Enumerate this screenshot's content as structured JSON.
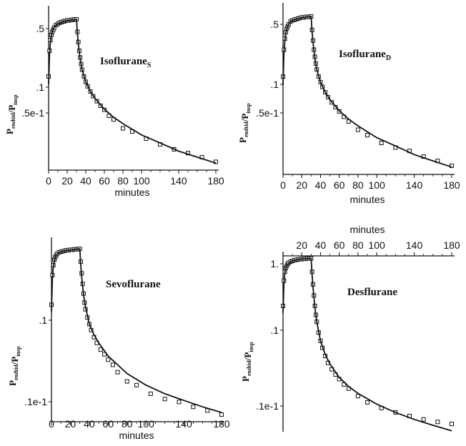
{
  "chart_data": [
    {
      "type": "line",
      "title": "Isoflurane",
      "title_subscript": "S",
      "ylabel": "P",
      "ylabel_subscript_1": "endtid",
      "ylabel_mid": "/P",
      "ylabel_subscript_2": "insp",
      "xlabel": "minutes",
      "yscale": "log",
      "xlim": [
        0,
        180
      ],
      "ylim": [
        0.012,
        0.9
      ],
      "xticks": [
        "0",
        "20",
        "40",
        "60",
        "80",
        "100",
        "140",
        "180"
      ],
      "yticks": [
        ".5",
        ".1",
        ".5e-1"
      ],
      "series": [
        {
          "style": "markers",
          "x": [
            0,
            1,
            2,
            3,
            4,
            5,
            6,
            8,
            10,
            12,
            14,
            16,
            18,
            20,
            22,
            24,
            26,
            28,
            30,
            31,
            32,
            33,
            34,
            35,
            36,
            38,
            40,
            42,
            45,
            48,
            52,
            56,
            60,
            65,
            70,
            80,
            90,
            105,
            120,
            135,
            150,
            165,
            180
          ],
          "y": [
            0.15,
            0.3,
            0.4,
            0.46,
            0.5,
            0.53,
            0.56,
            0.6,
            0.62,
            0.64,
            0.65,
            0.66,
            0.67,
            0.68,
            0.68,
            0.69,
            0.69,
            0.7,
            0.7,
            0.5,
            0.38,
            0.3,
            0.25,
            0.21,
            0.18,
            0.15,
            0.13,
            0.115,
            0.1,
            0.088,
            0.077,
            0.068,
            0.061,
            0.052,
            0.047,
            0.037,
            0.034,
            0.028,
            0.024,
            0.021,
            0.019,
            0.017,
            0.015
          ]
        },
        {
          "style": "line",
          "x": [
            0,
            1,
            2,
            3,
            4,
            6,
            8,
            10,
            14,
            18,
            22,
            26,
            30,
            31,
            32,
            34,
            36,
            40,
            45,
            50,
            60,
            70,
            80,
            100,
            120,
            140,
            160,
            180
          ],
          "y": [
            0.12,
            0.28,
            0.38,
            0.45,
            0.5,
            0.57,
            0.6,
            0.62,
            0.65,
            0.67,
            0.68,
            0.69,
            0.7,
            0.48,
            0.36,
            0.24,
            0.18,
            0.13,
            0.1,
            0.083,
            0.062,
            0.05,
            0.042,
            0.031,
            0.025,
            0.02,
            0.017,
            0.0145
          ]
        }
      ]
    },
    {
      "type": "line",
      "title": "Isoflurane",
      "title_subscript": "D",
      "ylabel": "P",
      "ylabel_subscript_1": "endtid",
      "ylabel_mid": "/P",
      "ylabel_subscript_2": "insp",
      "xlabel": "minutes",
      "yscale": "log",
      "xlim": [
        0,
        180
      ],
      "ylim": [
        0.012,
        0.9
      ],
      "xticks": [
        "0",
        "20",
        "40",
        "60",
        "80",
        "100",
        "140",
        "180"
      ],
      "yticks": [
        ".5",
        ".1",
        ".5e-1"
      ],
      "series": [
        {
          "style": "markers",
          "x": [
            0,
            1,
            2,
            3,
            4,
            5,
            6,
            8,
            10,
            12,
            14,
            16,
            18,
            20,
            22,
            24,
            26,
            28,
            30,
            31,
            32,
            33,
            34,
            35,
            36,
            38,
            40,
            42,
            45,
            48,
            52,
            56,
            60,
            65,
            70,
            80,
            90,
            105,
            120,
            135,
            150,
            165,
            180
          ],
          "y": [
            0.15,
            0.3,
            0.4,
            0.47,
            0.52,
            0.55,
            0.58,
            0.62,
            0.64,
            0.65,
            0.66,
            0.67,
            0.68,
            0.69,
            0.69,
            0.7,
            0.7,
            0.7,
            0.71,
            0.5,
            0.38,
            0.3,
            0.25,
            0.21,
            0.18,
            0.15,
            0.13,
            0.115,
            0.1,
            0.088,
            0.077,
            0.068,
            0.061,
            0.053,
            0.047,
            0.038,
            0.033,
            0.027,
            0.024,
            0.022,
            0.019,
            0.017,
            0.015
          ]
        },
        {
          "style": "line",
          "x": [
            0,
            1,
            2,
            3,
            4,
            6,
            8,
            10,
            14,
            18,
            22,
            26,
            30,
            31,
            32,
            34,
            36,
            40,
            45,
            50,
            60,
            70,
            80,
            100,
            120,
            140,
            160,
            180
          ],
          "y": [
            0.12,
            0.28,
            0.38,
            0.46,
            0.51,
            0.58,
            0.62,
            0.64,
            0.66,
            0.68,
            0.69,
            0.7,
            0.71,
            0.48,
            0.36,
            0.24,
            0.18,
            0.13,
            0.1,
            0.083,
            0.062,
            0.05,
            0.042,
            0.031,
            0.025,
            0.02,
            0.017,
            0.0145
          ]
        }
      ]
    },
    {
      "type": "line",
      "title": "Sevoflurane",
      "ylabel": "P",
      "ylabel_subscript_1": "endtid",
      "ylabel_mid": "/P",
      "ylabel_subscript_2": "insp",
      "xlabel": "minutes",
      "yscale": "log",
      "xlim": [
        0,
        180
      ],
      "ylim": [
        0.007,
        0.95
      ],
      "xticks": [
        "0",
        "20",
        "40",
        "60",
        "80",
        "100",
        "140",
        "180"
      ],
      "yticks": [
        ".1",
        ".1e-1"
      ],
      "series": [
        {
          "style": "markers",
          "x": [
            0,
            1,
            2,
            3,
            4,
            5,
            6,
            8,
            10,
            12,
            14,
            16,
            18,
            20,
            22,
            24,
            26,
            28,
            30,
            31,
            32,
            33,
            34,
            35,
            36,
            38,
            40,
            42,
            45,
            48,
            52,
            56,
            60,
            65,
            70,
            80,
            90,
            105,
            120,
            135,
            150,
            165,
            180
          ],
          "y": [
            0.17,
            0.38,
            0.5,
            0.58,
            0.62,
            0.65,
            0.68,
            0.71,
            0.72,
            0.73,
            0.74,
            0.75,
            0.75,
            0.76,
            0.76,
            0.77,
            0.77,
            0.77,
            0.78,
            0.55,
            0.4,
            0.3,
            0.23,
            0.18,
            0.15,
            0.12,
            0.1,
            0.085,
            0.07,
            0.06,
            0.05,
            0.044,
            0.038,
            0.033,
            0.027,
            0.021,
            0.019,
            0.015,
            0.013,
            0.012,
            0.0105,
            0.0095,
            0.0085
          ]
        },
        {
          "style": "line",
          "x": [
            0,
            1,
            2,
            3,
            4,
            6,
            8,
            10,
            14,
            18,
            22,
            26,
            30,
            31,
            32,
            34,
            36,
            40,
            45,
            50,
            60,
            70,
            80,
            100,
            120,
            140,
            160,
            180
          ],
          "y": [
            0.14,
            0.35,
            0.48,
            0.56,
            0.61,
            0.68,
            0.71,
            0.72,
            0.74,
            0.75,
            0.76,
            0.77,
            0.78,
            0.5,
            0.36,
            0.22,
            0.16,
            0.1,
            0.075,
            0.06,
            0.042,
            0.033,
            0.026,
            0.019,
            0.015,
            0.0125,
            0.0105,
            0.009
          ]
        }
      ]
    },
    {
      "type": "line",
      "title": "Desflurane",
      "ylabel": "P",
      "ylabel_subscript_1": "endtid",
      "ylabel_mid": "/P",
      "ylabel_subscript_2": "insp",
      "xlabel": "minutes",
      "xaxis_position": "top",
      "yscale": "log",
      "xlim": [
        0,
        180
      ],
      "ylim": [
        0.0035,
        1.0
      ],
      "xticks": [
        "20",
        "40",
        "60",
        "80",
        "100",
        "140",
        "180"
      ],
      "yticks": [
        "1.",
        ".1",
        ".1e-1"
      ],
      "series": [
        {
          "style": "markers",
          "x": [
            0,
            1,
            2,
            3,
            4,
            5,
            6,
            8,
            10,
            12,
            14,
            16,
            18,
            20,
            22,
            24,
            26,
            28,
            30,
            31,
            32,
            33,
            34,
            35,
            36,
            38,
            40,
            42,
            45,
            48,
            52,
            56,
            60,
            65,
            70,
            80,
            90,
            105,
            120,
            135,
            150,
            165,
            180
          ],
          "y": [
            0.2,
            0.45,
            0.6,
            0.68,
            0.73,
            0.77,
            0.8,
            0.83,
            0.85,
            0.87,
            0.88,
            0.89,
            0.9,
            0.9,
            0.91,
            0.91,
            0.92,
            0.92,
            0.92,
            0.6,
            0.4,
            0.28,
            0.2,
            0.15,
            0.12,
            0.085,
            0.065,
            0.052,
            0.04,
            0.032,
            0.026,
            0.022,
            0.019,
            0.016,
            0.014,
            0.011,
            0.009,
            0.0075,
            0.0065,
            0.0058,
            0.0052,
            0.0048,
            0.0045
          ]
        },
        {
          "style": "line",
          "x": [
            0,
            1,
            2,
            3,
            4,
            6,
            8,
            10,
            14,
            18,
            22,
            26,
            30,
            31,
            32,
            34,
            36,
            40,
            45,
            50,
            60,
            70,
            80,
            100,
            120,
            140,
            160,
            180
          ],
          "y": [
            0.16,
            0.42,
            0.58,
            0.67,
            0.72,
            0.79,
            0.83,
            0.86,
            0.88,
            0.9,
            0.91,
            0.92,
            0.92,
            0.55,
            0.36,
            0.19,
            0.12,
            0.065,
            0.042,
            0.031,
            0.02,
            0.015,
            0.012,
            0.0085,
            0.0065,
            0.0052,
            0.0043,
            0.0036
          ]
        }
      ]
    }
  ]
}
